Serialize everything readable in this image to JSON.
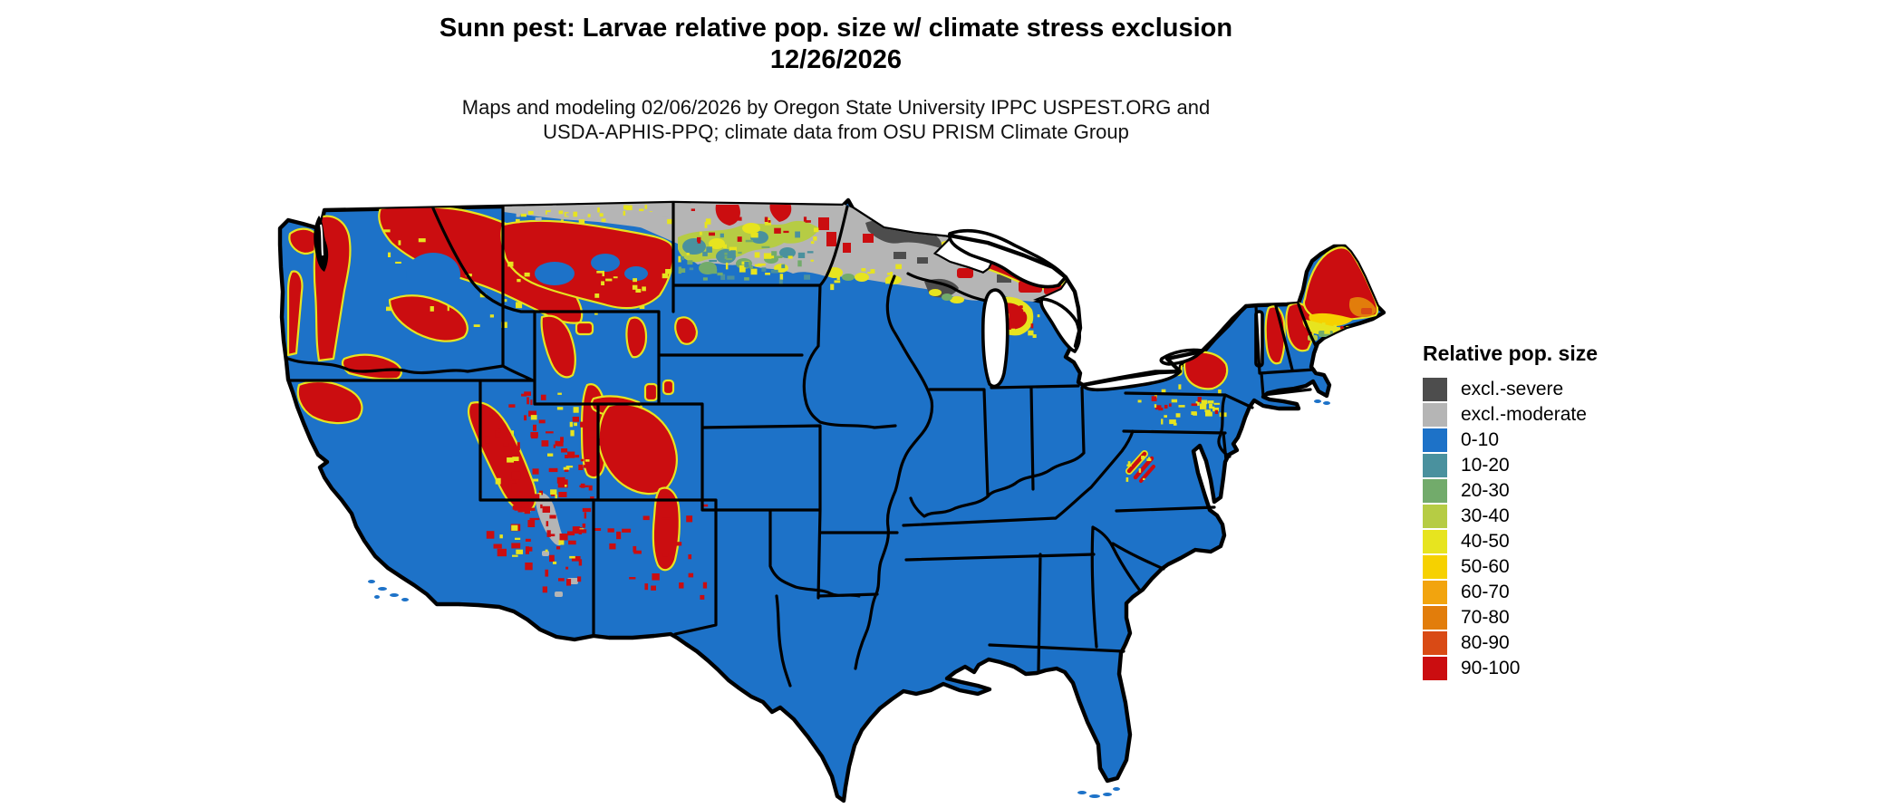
{
  "title": {
    "line1": "Sunn pest: Larvae relative pop. size w/ climate stress exclusion",
    "line2": "12/26/2026"
  },
  "subtitle": {
    "line1": "Maps and modeling 02/06/2026 by Oregon State University IPPC USPEST.ORG and",
    "line2": "USDA-APHIS-PPQ; climate data from OSU PRISM Climate Group"
  },
  "legend": {
    "title": "Relative pop. size",
    "items": [
      {
        "label": "excl.-severe",
        "color": "#4d4d4d"
      },
      {
        "label": "excl.-moderate",
        "color": "#b5b5b5"
      },
      {
        "label": "0-10",
        "color": "#1d72c8"
      },
      {
        "label": "10-20",
        "color": "#4a919e"
      },
      {
        "label": "20-30",
        "color": "#72ab6b"
      },
      {
        "label": "30-40",
        "color": "#b6cc44"
      },
      {
        "label": "40-50",
        "color": "#e7e41f"
      },
      {
        "label": "50-60",
        "color": "#f6d100"
      },
      {
        "label": "60-70",
        "color": "#f2a40e"
      },
      {
        "label": "70-80",
        "color": "#e27d0b"
      },
      {
        "label": "80-90",
        "color": "#d94a15"
      },
      {
        "label": "90-100",
        "color": "#cb0d10"
      }
    ]
  },
  "colors": {
    "c0": "#1d72c8",
    "c1": "#4a919e",
    "c2": "#72ab6b",
    "c3": "#b6cc44",
    "c4": "#e7e41f",
    "c5": "#f6d100",
    "c6": "#f2a40e",
    "c7": "#e27d0b",
    "c8": "#d94a15",
    "c9": "#cb0d10",
    "sev": "#4d4d4d",
    "mod": "#b5b5b5",
    "border": "#000000",
    "background": "#ffffff",
    "water": "#ffffff"
  },
  "map": {
    "region": "Contiguous United States choropleth raster",
    "dominant_class": "0-10 (blue) across central, southern and eastern US",
    "high_population_zones": "Mountain West (Cascades, Rockies, Sierra Nevada), Upper Peninsula of Michigan, Adirondacks, northern New England and northern Maine shown in 90-100 red",
    "excluded_zones": "Northern North Dakota, northern Minnesota, northern Wisconsin and interior Upper Michigan shown excl.-moderate gray; northeastern Minnesota arrowhead shown excl.-severe dark gray",
    "transition_zones": "Yellow/green/teal mosaic across central North Dakota and fringes of all red zones"
  }
}
